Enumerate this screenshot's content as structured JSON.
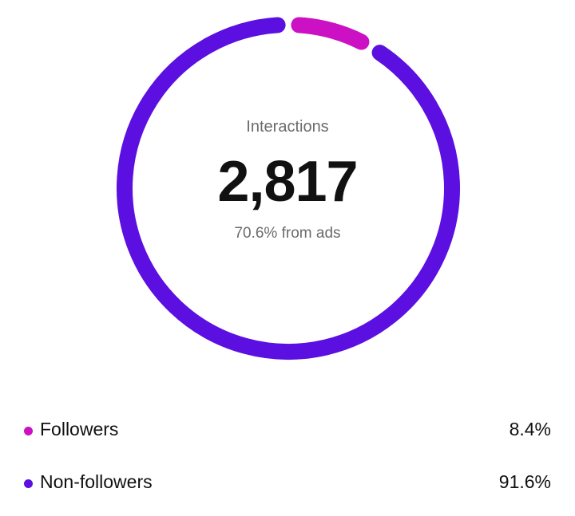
{
  "summary": {
    "label": "Interactions",
    "value": "2,817",
    "subtext": "70.6% from ads"
  },
  "colors": {
    "followers": "#CC10C4",
    "non_followers": "#5B0FE0"
  },
  "legend": [
    {
      "label": "Followers",
      "value": "8.4%",
      "color_key": "followers"
    },
    {
      "label": "Non-followers",
      "value": "91.6%",
      "color_key": "non_followers"
    }
  ],
  "chart_data": {
    "type": "pie",
    "categories": [
      "Followers",
      "Non-followers"
    ],
    "values": [
      8.4,
      91.6
    ],
    "title": "",
    "style": "donut"
  }
}
